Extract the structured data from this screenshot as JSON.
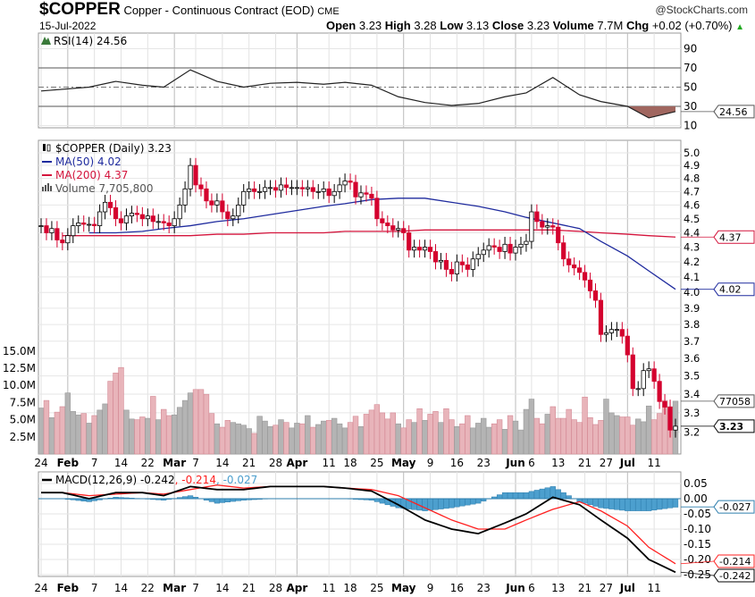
{
  "header": {
    "symbol": "$COPPER",
    "name": "Copper - Continuous Contract (EOD)",
    "exchange": "CME",
    "date": "15-Jul-2022",
    "watermark": "@StockCharts.com",
    "open_label": "Open",
    "open": "3.23",
    "high_label": "High",
    "high": "3.28",
    "low_label": "Low",
    "low": "3.13",
    "close_label": "Close",
    "close": "3.23",
    "volume_label": "Volume",
    "volume": "7.7M",
    "chg_label": "Chg",
    "chg": "+0.02 (+0.70%)",
    "chg_direction": "up",
    "up_color": "#22aa22"
  },
  "legends": {
    "rsi": "RSI(14) 24.56",
    "price": "$COPPER (Daily) 3.23",
    "ma50": "MA(50) 4.02",
    "ma200": "MA(200) 4.37",
    "volume": "Volume 7,705,800",
    "macd": "MACD(12,26,9) -0.242",
    "macd_signal": ", -0.214",
    "macd_hist": ", -0.027"
  },
  "colors": {
    "up_candle": "#ffffff",
    "down_candle": "#d4002e",
    "ma50": "#1f2b9e",
    "ma200": "#d4143c",
    "vol_up": "#b4b4b4",
    "vol_down": "#e8b4ba",
    "rsi_fill": "#a0665f",
    "macd": "#000000",
    "signal": "#ff2020",
    "hist": "#4c9fce"
  },
  "chart_data": [
    {
      "type": "candlestick",
      "title": "$COPPER (Daily) 3.23",
      "y_scale": "log",
      "ylim": [
        3.13,
        5.06
      ],
      "y_ticks": [
        "3.2",
        "3.3",
        "3.4",
        "3.5",
        "3.6",
        "3.7",
        "3.8",
        "3.9",
        "4.0",
        "4.1",
        "4.2",
        "4.3",
        "4.4",
        "4.5",
        "4.6",
        "4.7",
        "4.8",
        "4.9",
        "5.0"
      ],
      "volume_ticks": [
        "2.5M",
        "5.0M",
        "7.5M",
        "10.0M",
        "12.5M",
        "15.0M"
      ],
      "x_ticks": [
        {
          "label": "24",
          "date": "2022-01-24",
          "month": false
        },
        {
          "label": "Feb",
          "date": "2022-01-31",
          "month": true
        },
        {
          "label": "7",
          "date": "2022-02-07",
          "month": false
        },
        {
          "label": "14",
          "date": "2022-02-14",
          "month": false
        },
        {
          "label": "22",
          "date": "2022-02-22",
          "month": false
        },
        {
          "label": "Mar",
          "date": "2022-03-01",
          "month": true
        },
        {
          "label": "7",
          "date": "2022-03-07",
          "month": false
        },
        {
          "label": "14",
          "date": "2022-03-14",
          "month": false
        },
        {
          "label": "21",
          "date": "2022-03-21",
          "month": false
        },
        {
          "label": "28",
          "date": "2022-03-28",
          "month": false
        },
        {
          "label": "Apr",
          "date": "2022-04-01",
          "month": true
        },
        {
          "label": "11",
          "date": "2022-04-11",
          "month": false
        },
        {
          "label": "18",
          "date": "2022-04-18",
          "month": false
        },
        {
          "label": "25",
          "date": "2022-04-25",
          "month": false
        },
        {
          "label": "May",
          "date": "2022-05-02",
          "month": true
        },
        {
          "label": "9",
          "date": "2022-05-09",
          "month": false
        },
        {
          "label": "16",
          "date": "2022-05-16",
          "month": false
        },
        {
          "label": "23",
          "date": "2022-05-23",
          "month": false
        },
        {
          "label": "Jun",
          "date": "2022-06-01",
          "month": true
        },
        {
          "label": "6",
          "date": "2022-06-06",
          "month": false
        },
        {
          "label": "13",
          "date": "2022-06-13",
          "month": false
        },
        {
          "label": "21",
          "date": "2022-06-21",
          "month": false
        },
        {
          "label": "27",
          "date": "2022-06-27",
          "month": false
        },
        {
          "label": "Jul",
          "date": "2022-07-01",
          "month": true
        },
        {
          "label": "11",
          "date": "2022-07-11",
          "month": false
        }
      ],
      "weeks": [
        {
          "start": "2022-01-24",
          "close": [
            4.45,
            4.4,
            4.43,
            4.35,
            4.33
          ],
          "volume_m": [
            6.7,
            7.8,
            5.3,
            6.1,
            6.9
          ]
        },
        {
          "start": "2022-01-31",
          "close": [
            4.38,
            4.45,
            4.47,
            4.46,
            4.46
          ],
          "volume_m": [
            8.9,
            6.2,
            5.7,
            5.9,
            4.5
          ]
        },
        {
          "start": "2022-02-07",
          "close": [
            4.45,
            4.55,
            4.62,
            4.58,
            4.5
          ],
          "volume_m": [
            5.6,
            6.4,
            7.3,
            10.6,
            11.8
          ]
        },
        {
          "start": "2022-02-14",
          "close": [
            4.47,
            4.52,
            4.54,
            4.53,
            4.5
          ],
          "volume_m": [
            12.6,
            6.4,
            5.1,
            5.0,
            5.4
          ]
        },
        {
          "start": "2022-02-22",
          "close": [
            4.52,
            4.48,
            4.48,
            4.47
          ],
          "volume_m": [
            5.2,
            8.4,
            5.0,
            6.5
          ]
        },
        {
          "start": "2022-02-28",
          "close": [
            4.45,
            4.5,
            4.6,
            4.72,
            4.9
          ],
          "volume_m": [
            5.6,
            5.7,
            6.8,
            7.8,
            8.9
          ]
        },
        {
          "start": "2022-03-07",
          "close": [
            4.75,
            4.72,
            4.63,
            4.6,
            4.63
          ],
          "volume_m": [
            9.4,
            9.4,
            8.7,
            5.9,
            4.4
          ]
        },
        {
          "start": "2022-03-14",
          "close": [
            4.55,
            4.5,
            4.52,
            4.6,
            4.7
          ],
          "volume_m": [
            3.9,
            4.9,
            4.6,
            4.4,
            4.2
          ]
        },
        {
          "start": "2022-03-21",
          "close": [
            4.72,
            4.7,
            4.7,
            4.73,
            4.73
          ],
          "volume_m": [
            3.7,
            3.0,
            5.5,
            4.8,
            4.0
          ]
        },
        {
          "start": "2022-03-28",
          "close": [
            4.71,
            4.75,
            4.73,
            4.73,
            4.73
          ],
          "volume_m": [
            4.2,
            5.0,
            4.6,
            3.8,
            4.5
          ]
        },
        {
          "start": "2022-04-04",
          "close": [
            4.72,
            4.73,
            4.7,
            4.7,
            4.72
          ],
          "volume_m": [
            4.4,
            5.6,
            3.9,
            4.3,
            4.8
          ]
        },
        {
          "start": "2022-04-11",
          "close": [
            4.67,
            4.7,
            4.75,
            4.78
          ],
          "volume_m": [
            4.9,
            5.2,
            4.4,
            3.8
          ]
        },
        {
          "start": "2022-04-18",
          "close": [
            4.77,
            4.66,
            4.69,
            4.68,
            4.65
          ],
          "volume_m": [
            4.6,
            5.5,
            4.0,
            5.8,
            6.4
          ]
        },
        {
          "start": "2022-04-25",
          "close": [
            4.5,
            4.47,
            4.45,
            4.42,
            4.43
          ],
          "volume_m": [
            7.2,
            6.0,
            5.1,
            6.0,
            4.4
          ]
        },
        {
          "start": "2022-05-02",
          "close": [
            4.4,
            4.28,
            4.3,
            4.28,
            4.3
          ],
          "volume_m": [
            3.8,
            5.0,
            4.6,
            6.6,
            4.9
          ]
        },
        {
          "start": "2022-05-09",
          "close": [
            4.27,
            4.2,
            4.21,
            4.15,
            4.12
          ],
          "volume_m": [
            5.8,
            6.2,
            4.6,
            6.6,
            5.0
          ]
        },
        {
          "start": "2022-05-16",
          "close": [
            4.2,
            4.18,
            4.15,
            4.22,
            4.25
          ],
          "volume_m": [
            4.0,
            4.4,
            5.6,
            3.8,
            4.5
          ]
        },
        {
          "start": "2022-05-23",
          "close": [
            4.28,
            4.31,
            4.3,
            4.27,
            4.32
          ],
          "volume_m": [
            5.2,
            3.9,
            4.4,
            5.0,
            3.6
          ]
        },
        {
          "start": "2022-05-31",
          "close": [
            4.26,
            4.3,
            4.32,
            4.34
          ],
          "volume_m": [
            5.6,
            4.8,
            3.5,
            6.5
          ]
        },
        {
          "start": "2022-06-06",
          "close": [
            4.55,
            4.48,
            4.44,
            4.45,
            4.44
          ],
          "volume_m": [
            8.0,
            5.2,
            4.4,
            5.8,
            6.9
          ]
        },
        {
          "start": "2022-06-13",
          "close": [
            4.33,
            4.22,
            4.18,
            4.16,
            4.13
          ],
          "volume_m": [
            5.2,
            5.2,
            6.5,
            5.0,
            4.6
          ]
        },
        {
          "start": "2022-06-21",
          "close": [
            4.08,
            4.01,
            3.95,
            3.74
          ],
          "volume_m": [
            8.3,
            5.3,
            4.3,
            4.9
          ]
        },
        {
          "start": "2022-06-27",
          "close": [
            3.75,
            3.77,
            3.77,
            3.73,
            3.62
          ],
          "volume_m": [
            8.0,
            6.0,
            5.6,
            5.4,
            5.4
          ]
        },
        {
          "start": "2022-07-05",
          "close": [
            3.43,
            3.43,
            3.53,
            3.54
          ],
          "volume_m": [
            4.2,
            5.1,
            4.7,
            7.0
          ]
        },
        {
          "start": "2022-07-11",
          "close": [
            3.47,
            3.36,
            3.33,
            3.21,
            3.23
          ],
          "volume_m": [
            5.0,
            5.9,
            7.8,
            6.9,
            7.7
          ]
        }
      ],
      "ma50_weekly": [
        null,
        4.4,
        4.4,
        4.41,
        4.43,
        4.45,
        4.48,
        4.5,
        4.53,
        4.56,
        4.59,
        4.61,
        4.64,
        4.65,
        4.65,
        4.62,
        4.59,
        4.55,
        4.51,
        4.47,
        4.43,
        4.34,
        4.24,
        4.14,
        4.02
      ],
      "ma200_weekly": [
        4.38,
        4.38,
        4.38,
        4.38,
        4.38,
        4.38,
        4.39,
        4.39,
        4.4,
        4.4,
        4.4,
        4.41,
        4.41,
        4.41,
        4.42,
        4.42,
        4.42,
        4.42,
        4.42,
        4.42,
        4.41,
        4.4,
        4.39,
        4.38,
        4.37
      ],
      "last_labels": {
        "price": "3.23",
        "ma50": "4.02",
        "ma200": "4.37",
        "volume": "77058"
      }
    },
    {
      "type": "line",
      "title": "RSI(14) 24.56",
      "ylim": [
        0,
        100
      ],
      "y_ticks": [
        "10",
        "30",
        "50",
        "70",
        "90"
      ],
      "reference_lines": [
        30,
        50,
        70
      ],
      "weekly_values": [
        46,
        50,
        56,
        52,
        50,
        68,
        56,
        50,
        54,
        55,
        53,
        55,
        52,
        40,
        34,
        31,
        33,
        40,
        44,
        60,
        42,
        35,
        30,
        18,
        24.56
      ],
      "last_label": "24.56"
    },
    {
      "type": "line",
      "title": "MACD(12,26,9)",
      "ylim": [
        -0.26,
        0.075
      ],
      "y_ticks": [
        "0.05",
        "0.00",
        "-0.05",
        "-0.10",
        "-0.15",
        "-0.20",
        "-0.25"
      ],
      "series": [
        {
          "name": "MACD",
          "weekly_values": [
            0.02,
            0.0,
            0.02,
            0.02,
            0.01,
            0.04,
            0.03,
            0.03,
            0.04,
            0.04,
            0.04,
            0.035,
            0.025,
            -0.02,
            -0.07,
            -0.1,
            -0.115,
            -0.08,
            -0.05,
            0.005,
            -0.02,
            -0.07,
            -0.13,
            -0.2,
            -0.242
          ]
        },
        {
          "name": "Signal",
          "weekly_values": [
            0.02,
            0.01,
            0.015,
            0.02,
            0.015,
            0.03,
            0.045,
            0.035,
            0.04,
            0.04,
            0.04,
            0.035,
            0.03,
            0.01,
            -0.03,
            -0.07,
            -0.1,
            -0.1,
            -0.07,
            -0.035,
            -0.01,
            -0.04,
            -0.09,
            -0.16,
            -0.214
          ]
        }
      ],
      "last_labels": {
        "macd": "-0.242",
        "signal": "-0.214",
        "hist": "-0.027"
      }
    }
  ]
}
